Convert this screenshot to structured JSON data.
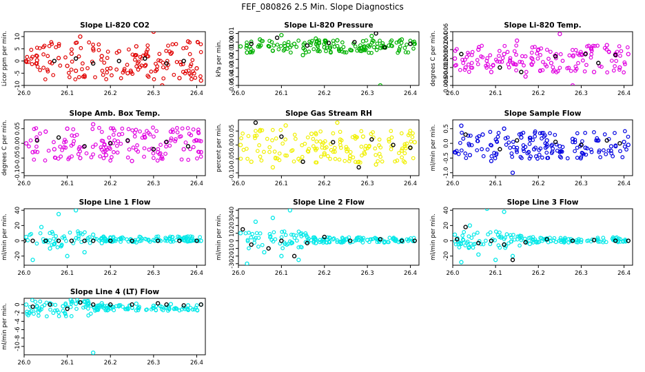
{
  "page": {
    "title": "FEF_080826  2.5 Min. Slope Diagnostics"
  },
  "chart_data": [
    {
      "type": "scatter",
      "title": "Slope Li-820 CO2",
      "ylabel": "Licor ppm per min.",
      "xlim": [
        26.0,
        26.42
      ],
      "ylim": [
        -10,
        12
      ],
      "x_ticks": [
        "26.0",
        "26.1",
        "26.2",
        "26.3",
        "26.4"
      ],
      "y_ticks": [
        "-10",
        "-5",
        "0",
        "5",
        "10"
      ],
      "color": "#e00000",
      "series": [
        {
          "name": "data",
          "x": [
            26.005,
            26.03,
            26.06,
            26.08,
            26.1,
            26.11,
            26.12,
            26.13,
            26.14,
            26.16,
            26.18,
            26.2,
            26.22,
            26.24,
            26.26,
            26.28,
            26.3,
            26.32,
            26.34,
            26.36,
            26.38,
            26.4,
            26.41
          ],
          "y": [
            0,
            0.3,
            -0.5,
            1.2,
            -2,
            3,
            -4,
            10,
            -6,
            5,
            2,
            -3,
            4,
            -5,
            6,
            -2,
            12,
            -10,
            3,
            -7,
            8,
            -3,
            -8
          ]
        }
      ],
      "markers": {
        "x": [
          26.07,
          26.12,
          26.16,
          26.22,
          26.28,
          26.33,
          26.37
        ],
        "y": [
          0,
          1,
          -1,
          0,
          1,
          -1,
          0
        ]
      }
    },
    {
      "type": "scatter",
      "title": "Slope Li-820 Pressure",
      "ylabel": "kPa per min.",
      "xlim": [
        26.0,
        26.42
      ],
      "ylim": [
        -0.05,
        0.012
      ],
      "x_ticks": [
        "26.0",
        "26.1",
        "26.2",
        "26.3",
        "26.4"
      ],
      "y_ticks": [
        "-0.05",
        "-0.04",
        "-0.03",
        "-0.02",
        "-0.01",
        "0.00",
        "0.01"
      ],
      "color": "#00b000",
      "series": [
        {
          "name": "data",
          "x": [
            26.005,
            26.02,
            26.05,
            26.08,
            26.1,
            26.13,
            26.15,
            26.18,
            26.2,
            26.23,
            26.26,
            26.29,
            26.31,
            26.33,
            26.35,
            26.38,
            26.41
          ],
          "y": [
            -0.005,
            -0.012,
            0.003,
            -0.01,
            0.008,
            -0.002,
            -0.015,
            0.004,
            -0.006,
            0.002,
            -0.009,
            0.001,
            0.007,
            -0.05,
            -0.004,
            0.003,
            -0.002
          ]
        }
      ],
      "markers": {
        "x": [
          26.03,
          26.09,
          26.16,
          26.21,
          26.27,
          26.32,
          26.34,
          26.4
        ],
        "y": [
          -0.002,
          0.005,
          -0.004,
          -0.001,
          0.0,
          0.01,
          -0.006,
          -0.002
        ]
      }
    },
    {
      "type": "scatter",
      "title": "Slope Li-820 Temp.",
      "ylabel": "degrees C per min.",
      "xlim": [
        26.0,
        26.42
      ],
      "ylim": [
        -0.006,
        0.006
      ],
      "x_ticks": [
        "26.0",
        "26.1",
        "26.2",
        "26.3",
        "26.4"
      ],
      "y_ticks": [
        "-0.006",
        "-0.004",
        "-0.002",
        "0.000",
        "0.002",
        "0.004",
        "0.006"
      ],
      "color": "#e000e0",
      "series": [
        {
          "name": "data",
          "x": [
            26.005,
            26.03,
            26.06,
            26.09,
            26.12,
            26.15,
            26.17,
            26.2,
            26.23,
            26.25,
            26.28,
            26.3,
            26.33,
            26.36,
            26.39,
            26.41
          ],
          "y": [
            0,
            -0.002,
            0.002,
            -0.003,
            0.001,
            0.004,
            -0.004,
            0.002,
            -0.001,
            0.0055,
            -0.006,
            0.001,
            -0.003,
            0.003,
            -0.002,
            0.001
          ]
        }
      ],
      "markers": {
        "x": [
          26.02,
          26.11,
          26.16,
          26.24,
          26.31,
          26.34,
          26.38
        ],
        "y": [
          0.001,
          -0.002,
          -0.003,
          0.0005,
          0.001,
          -0.001,
          0.0008
        ]
      }
    },
    {
      "type": "scatter",
      "title": "Slope Amb. Box Temp.",
      "ylabel": "degrees C per min.",
      "xlim": [
        26.0,
        26.42
      ],
      "ylim": [
        -0.11,
        0.08
      ],
      "x_ticks": [
        "26.0",
        "26.1",
        "26.2",
        "26.3",
        "26.4"
      ],
      "y_ticks": [
        "-0.10",
        "-0.05",
        "0.00",
        "0.05"
      ],
      "color": "#e000e0",
      "series": [
        {
          "name": "data",
          "x": [
            26.005,
            26.02,
            26.05,
            26.07,
            26.1,
            26.13,
            26.16,
            26.19,
            26.22,
            26.25,
            26.28,
            26.31,
            26.34,
            26.37,
            26.4,
            26.41
          ],
          "y": [
            0,
            -0.03,
            0.04,
            -0.02,
            0.05,
            -0.05,
            0.065,
            -0.04,
            0.03,
            -0.06,
            0.02,
            -0.03,
            0.04,
            -0.02,
            0.01,
            -0.03
          ]
        }
      ],
      "markers": {
        "x": [
          26.03,
          26.08,
          26.14,
          26.2,
          26.24,
          26.3,
          26.33,
          26.38
        ],
        "y": [
          0.01,
          0.02,
          -0.01,
          0.0,
          0.01,
          -0.02,
          0.005,
          -0.01
        ]
      }
    },
    {
      "type": "scatter",
      "title": "Slope Gas Stream RH",
      "ylabel": "percent per min.",
      "xlim": [
        26.0,
        26.42
      ],
      "ylim": [
        -0.11,
        0.09
      ],
      "x_ticks": [
        "26.0",
        "26.1",
        "26.2",
        "26.3",
        "26.4"
      ],
      "y_ticks": [
        "-0.10",
        "-0.05",
        "0.00",
        "0.05"
      ],
      "color": "#f0f000",
      "series": [
        {
          "name": "data",
          "x": [
            26.005,
            26.03,
            26.05,
            26.08,
            26.11,
            26.14,
            26.17,
            26.2,
            26.23,
            26.26,
            26.29,
            26.32,
            26.35,
            26.38,
            26.41
          ],
          "y": [
            0,
            -0.06,
            0.05,
            -0.08,
            0.07,
            -0.05,
            0.04,
            -0.03,
            0.08,
            -0.04,
            0.03,
            -0.07,
            0.02,
            -0.02,
            0.01
          ]
        }
      ],
      "markers": {
        "x": [
          26.04,
          26.1,
          26.15,
          26.22,
          26.28,
          26.31,
          26.36,
          26.4
        ],
        "y": [
          0.08,
          0.03,
          -0.06,
          0.01,
          -0.08,
          0.02,
          0.0,
          -0.01
        ]
      }
    },
    {
      "type": "scatter",
      "title": "Slope Sample Flow",
      "ylabel": "ml/min per min.",
      "xlim": [
        26.0,
        26.42
      ],
      "ylim": [
        -1.1,
        0.8
      ],
      "x_ticks": [
        "26.0",
        "26.1",
        "26.2",
        "26.3",
        "26.4"
      ],
      "y_ticks": [
        "-1.0",
        "-0.5",
        "0.0",
        "0.5"
      ],
      "color": "#0000e0",
      "series": [
        {
          "name": "data",
          "x": [
            26.005,
            26.02,
            26.04,
            26.07,
            26.09,
            26.12,
            26.14,
            26.16,
            26.19,
            26.22,
            26.25,
            26.28,
            26.31,
            26.34,
            26.37,
            26.4,
            26.41
          ],
          "y": [
            -0.3,
            0.6,
            -0.4,
            0.3,
            -0.6,
            0.5,
            -1.0,
            0.2,
            -0.2,
            0.1,
            -0.1,
            0.15,
            -0.15,
            0.1,
            -0.1,
            0.05,
            -0.05
          ]
        }
      ],
      "markers": {
        "x": [
          26.03,
          26.11,
          26.15,
          26.24,
          26.3,
          26.36,
          26.39
        ],
        "y": [
          0.3,
          -0.2,
          0.1,
          0.05,
          -0.05,
          0.1,
          0.0
        ]
      }
    },
    {
      "type": "scatter",
      "title": "Slope Line 1 Flow",
      "ylabel": "ml/min per min.",
      "xlim": [
        26.0,
        26.42
      ],
      "ylim": [
        -32,
        42
      ],
      "x_ticks": [
        "26.0",
        "26.1",
        "26.2",
        "26.3",
        "26.4"
      ],
      "y_ticks": [
        "-20",
        "0",
        "20",
        "40"
      ],
      "color": "#00e8e8",
      "series": [
        {
          "name": "data",
          "x": [
            26.005,
            26.02,
            26.04,
            26.06,
            26.08,
            26.1,
            26.12,
            26.14,
            26.16,
            26.18,
            26.22,
            26.26,
            26.3,
            26.34,
            26.38,
            26.41
          ],
          "y": [
            5,
            -25,
            18,
            -10,
            35,
            -20,
            40,
            -15,
            8,
            -3,
            2,
            -2,
            1,
            -1,
            1,
            0
          ]
        }
      ],
      "markers": {
        "x": [
          26.0,
          26.02,
          26.05,
          26.08,
          26.11,
          26.14,
          26.16,
          26.2,
          26.25,
          26.31,
          26.36,
          26.4
        ],
        "y": [
          0,
          0,
          0,
          0,
          0,
          0,
          0,
          0,
          0,
          0,
          0,
          0
        ]
      }
    },
    {
      "type": "scatter",
      "title": "Slope Line 2 Flow",
      "ylabel": "ml/min per min.",
      "xlim": [
        26.0,
        26.42
      ],
      "ylim": [
        -32,
        42
      ],
      "x_ticks": [
        "26.0",
        "26.1",
        "26.2",
        "26.3",
        "26.4"
      ],
      "y_ticks": [
        "-30",
        "-20",
        "-10",
        "0",
        "10",
        "20",
        "30",
        "40"
      ],
      "color": "#00e8e8",
      "series": [
        {
          "name": "data",
          "x": [
            26.005,
            26.02,
            26.04,
            26.06,
            26.08,
            26.1,
            26.12,
            26.14,
            26.16,
            26.18,
            26.22,
            26.26,
            26.3,
            26.34,
            26.38,
            26.41
          ],
          "y": [
            10,
            -30,
            25,
            -15,
            30,
            -20,
            40,
            -25,
            5,
            -3,
            2,
            -2,
            1,
            -1,
            1,
            0
          ]
        }
      ],
      "markers": {
        "x": [
          26.01,
          26.03,
          26.07,
          26.1,
          26.13,
          26.16,
          26.2,
          26.26,
          26.33,
          26.38,
          26.41
        ],
        "y": [
          15,
          -5,
          -10,
          0,
          -20,
          -3,
          5,
          0,
          2,
          0,
          0
        ]
      }
    },
    {
      "type": "scatter",
      "title": "Slope Line 3 Flow",
      "ylabel": "ml/min per min.",
      "xlim": [
        26.0,
        26.42
      ],
      "ylim": [
        -32,
        42
      ],
      "x_ticks": [
        "26.0",
        "26.1",
        "26.2",
        "26.3",
        "26.4"
      ],
      "y_ticks": [
        "-20",
        "0",
        "20",
        "40"
      ],
      "color": "#00e8e8",
      "series": [
        {
          "name": "data",
          "x": [
            26.005,
            26.02,
            26.04,
            26.06,
            26.08,
            26.1,
            26.12,
            26.14,
            26.16,
            26.18,
            26.22,
            26.26,
            26.3,
            26.34,
            26.38,
            26.41
          ],
          "y": [
            8,
            -28,
            20,
            -18,
            42,
            -25,
            38,
            -20,
            6,
            -4,
            3,
            -2,
            1,
            -1,
            1,
            0
          ]
        }
      ],
      "markers": {
        "x": [
          26.01,
          26.03,
          26.06,
          26.09,
          26.12,
          26.14,
          26.17,
          26.22,
          26.28,
          26.33,
          26.38,
          26.41
        ],
        "y": [
          2,
          18,
          -3,
          0,
          -5,
          -25,
          -2,
          2,
          0,
          1,
          0,
          0
        ]
      }
    },
    {
      "type": "scatter",
      "title": "Slope Line 4 (LT) Flow",
      "ylabel": "ml/min per min.",
      "xlim": [
        26.0,
        26.42
      ],
      "ylim": [
        -12,
        1.5
      ],
      "x_ticks": [
        "26.0",
        "26.1",
        "26.2",
        "26.3",
        "26.4"
      ],
      "y_ticks": [
        "-10",
        "-8",
        "-6",
        "-4",
        "-2",
        "0"
      ],
      "color": "#00e8e8",
      "series": [
        {
          "name": "data",
          "x": [
            26.005,
            26.03,
            26.06,
            26.09,
            26.12,
            26.14,
            26.16,
            26.18,
            26.22,
            26.26,
            26.3,
            26.34,
            26.38,
            26.41
          ],
          "y": [
            0,
            -0.5,
            0.3,
            -0.4,
            0.2,
            0.8,
            -11.5,
            0.3,
            -0.2,
            0.2,
            -0.3,
            0.1,
            -0.2,
            0
          ]
        }
      ],
      "markers": {
        "x": [
          26.02,
          26.06,
          26.1,
          26.13,
          26.16,
          26.2,
          26.25,
          26.31,
          26.33,
          26.37,
          26.41
        ],
        "y": [
          -0.5,
          0,
          -1,
          0.5,
          0,
          0,
          0,
          0.3,
          0,
          -0.2,
          0
        ]
      }
    }
  ]
}
